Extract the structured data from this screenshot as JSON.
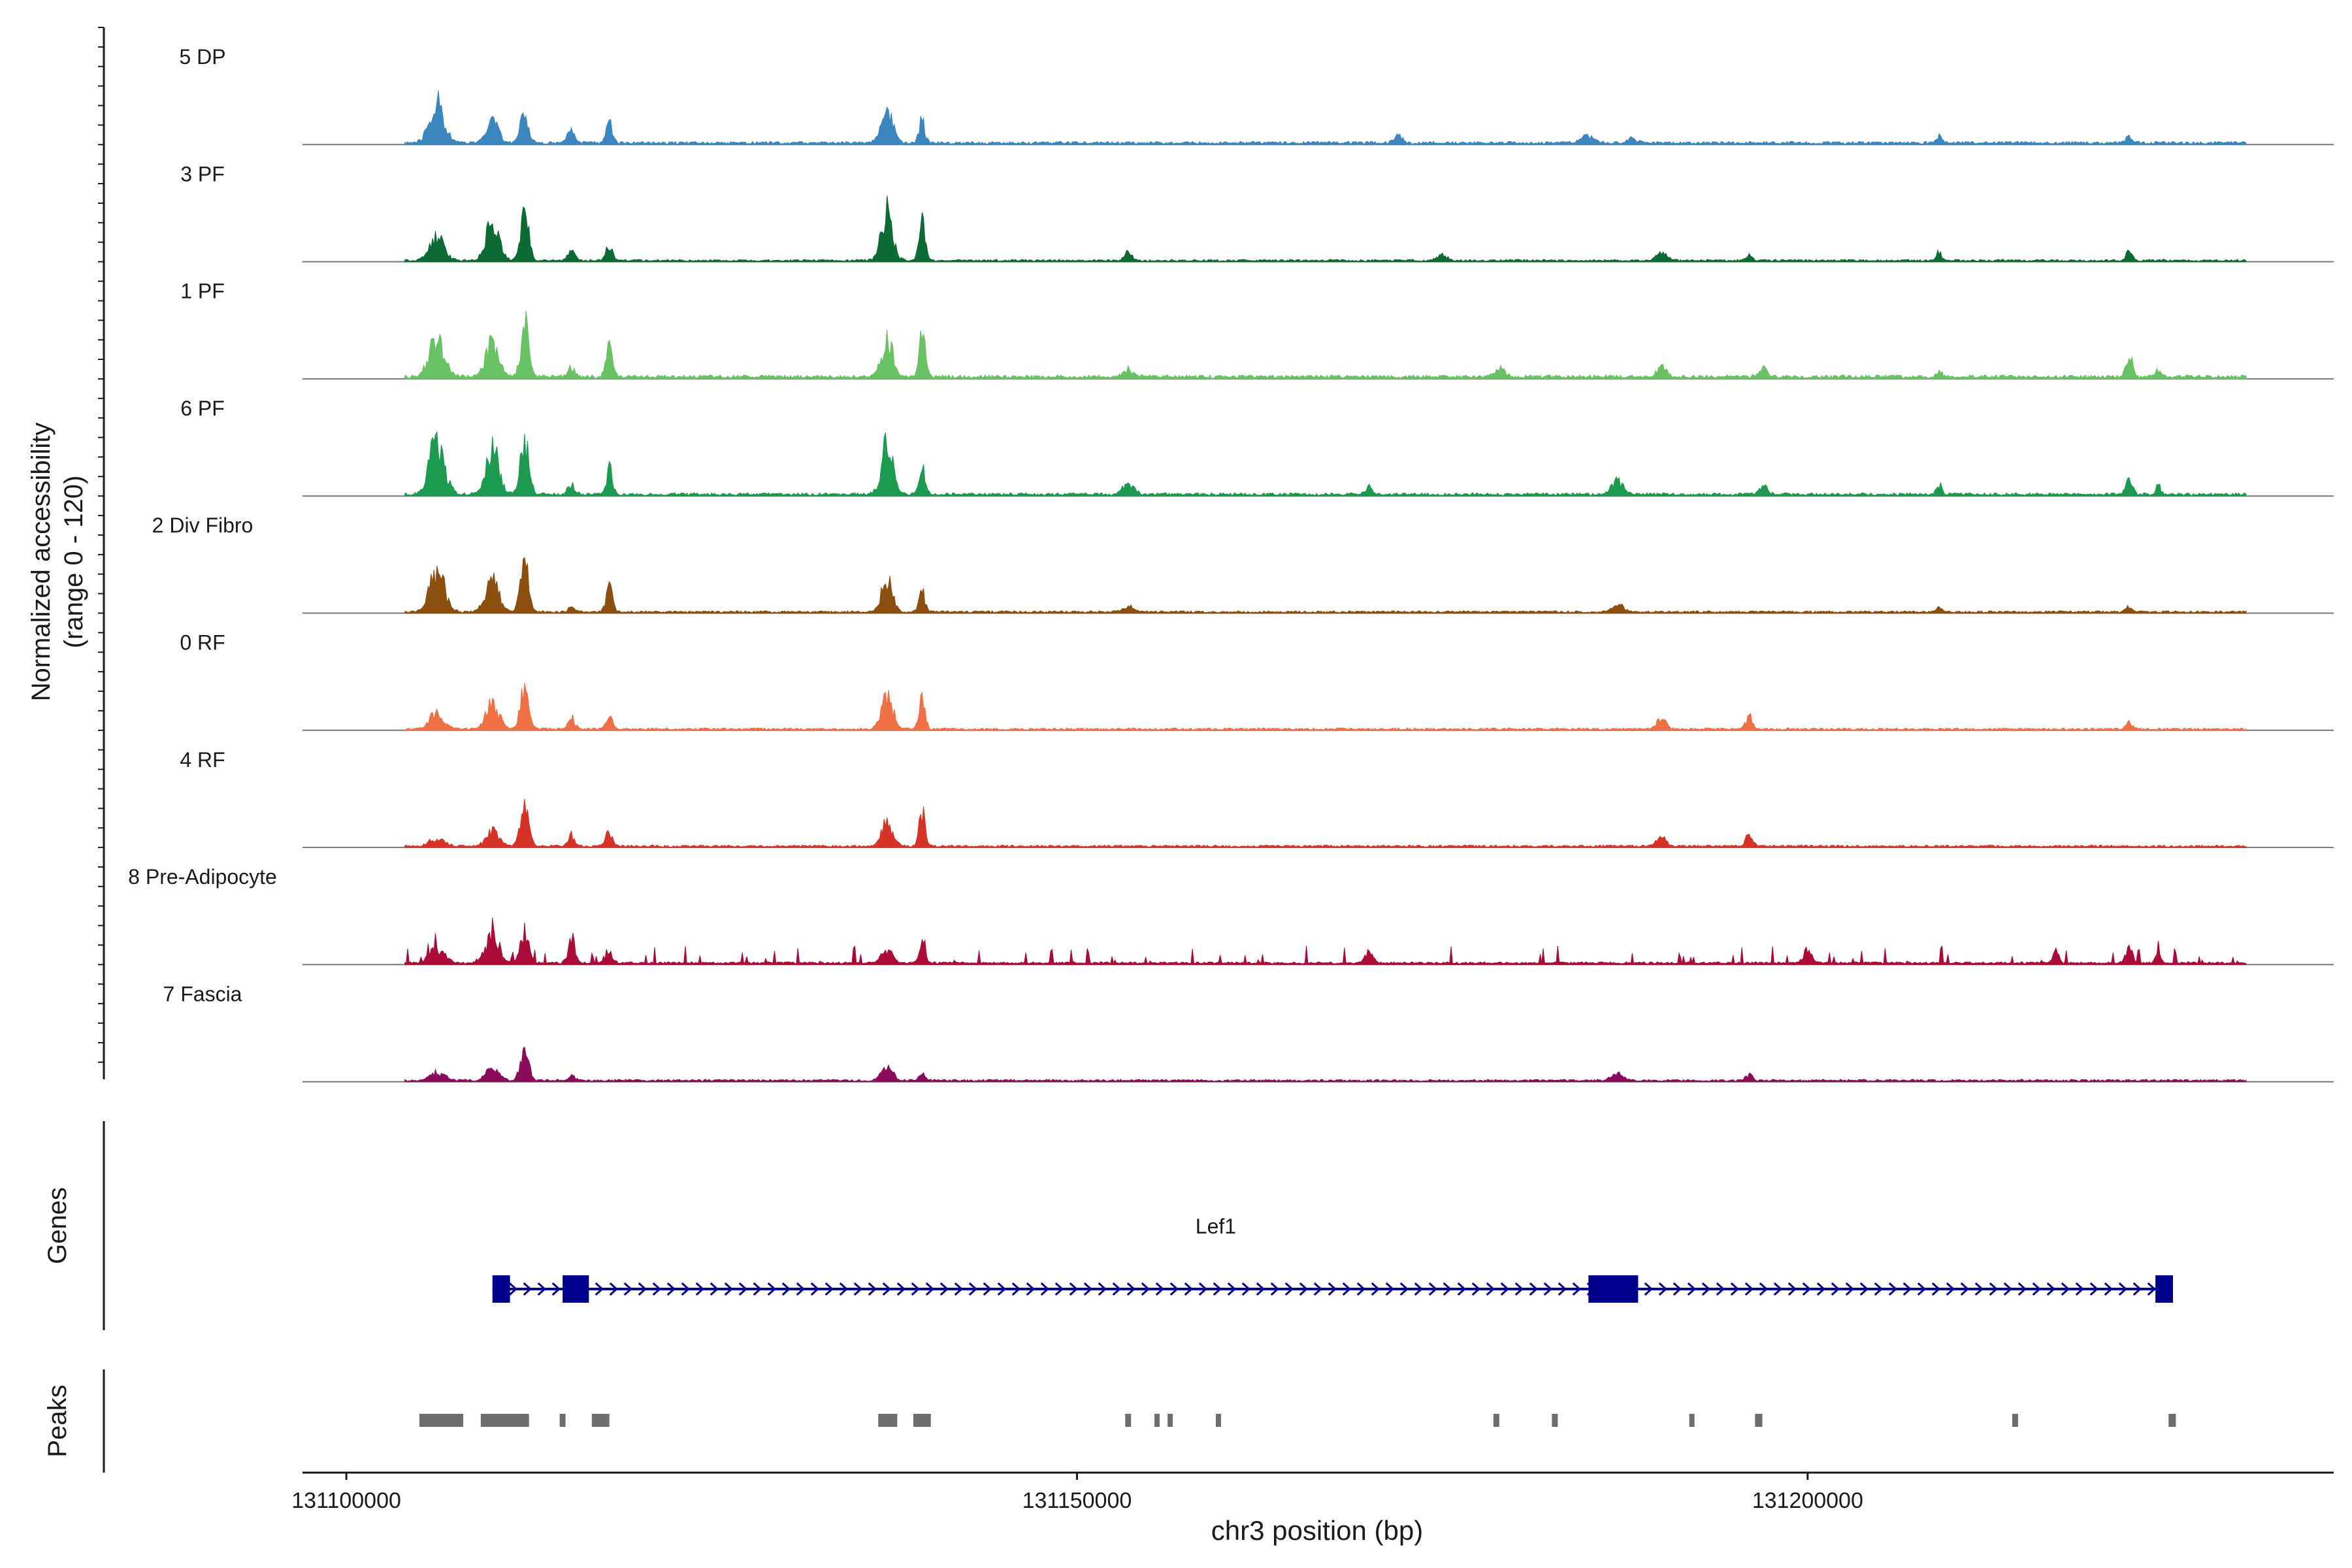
{
  "chart_data": {
    "type": "area",
    "title": "",
    "xlabel": "chr3 position (bp)",
    "ylabel": "Normalized accessibility\n(range 0 - 120)",
    "y_range": [
      0,
      120
    ],
    "x_range": [
      131097000,
      131236000
    ],
    "x_ticks": [
      131100000,
      131150000,
      131200000
    ],
    "x_tick_labels": [
      "131100000",
      "131150000",
      "131200000"
    ],
    "track_ranges": {
      "genes_label": "Genes",
      "peaks_label": "Peaks"
    },
    "series": [
      {
        "name": "5 DP",
        "color": "#3a87c0",
        "peaks": [
          [
            131106200,
            78,
            900
          ],
          [
            131110000,
            45,
            700
          ],
          [
            131112200,
            60,
            500
          ],
          [
            131115400,
            30,
            400
          ],
          [
            131118000,
            40,
            400
          ],
          [
            131137000,
            70,
            700
          ],
          [
            131139400,
            45,
            350
          ],
          [
            131172000,
            12,
            500
          ],
          [
            131185000,
            15,
            800
          ],
          [
            131188000,
            10,
            600
          ],
          [
            131209000,
            14,
            300
          ],
          [
            131222000,
            14,
            400
          ]
        ],
        "bg": 4
      },
      {
        "name": "3 PF",
        "color": "#0c6b34",
        "peaks": [
          [
            131106200,
            45,
            900
          ],
          [
            131110000,
            72,
            800
          ],
          [
            131112200,
            90,
            500
          ],
          [
            131115400,
            18,
            400
          ],
          [
            131118000,
            30,
            400
          ],
          [
            131137000,
            95,
            700
          ],
          [
            131139400,
            95,
            350
          ],
          [
            131153500,
            18,
            400
          ],
          [
            131175000,
            12,
            600
          ],
          [
            131190000,
            14,
            600
          ],
          [
            131196000,
            10,
            400
          ],
          [
            131209000,
            18,
            300
          ],
          [
            131222000,
            18,
            400
          ]
        ],
        "bg": 3
      },
      {
        "name": "1 PF",
        "color": "#68c162",
        "peaks": [
          [
            131106200,
            72,
            900
          ],
          [
            131110000,
            65,
            800
          ],
          [
            131112200,
            100,
            500
          ],
          [
            131115400,
            20,
            400
          ],
          [
            131118000,
            60,
            400
          ],
          [
            131137000,
            72,
            700
          ],
          [
            131139400,
            100,
            350
          ],
          [
            131153500,
            14,
            700
          ],
          [
            131179000,
            16,
            600
          ],
          [
            131190000,
            20,
            600
          ],
          [
            131197000,
            15,
            500
          ],
          [
            131209000,
            15,
            300
          ],
          [
            131222000,
            42,
            400
          ],
          [
            131224000,
            14,
            300
          ]
        ],
        "bg": 5
      },
      {
        "name": "6 PF",
        "color": "#1c9a4f",
        "peaks": [
          [
            131106200,
            105,
            900
          ],
          [
            131110000,
            85,
            800
          ],
          [
            131112200,
            110,
            500
          ],
          [
            131115400,
            20,
            400
          ],
          [
            131118000,
            50,
            400
          ],
          [
            131137000,
            100,
            700
          ],
          [
            131139400,
            65,
            350
          ],
          [
            131153500,
            22,
            700
          ],
          [
            131170000,
            15,
            400
          ],
          [
            131187000,
            25,
            700
          ],
          [
            131197000,
            15,
            500
          ],
          [
            131209000,
            20,
            300
          ],
          [
            131222000,
            28,
            400
          ],
          [
            131224000,
            18,
            300
          ]
        ],
        "bg": 4
      },
      {
        "name": "2 Div Fibro",
        "color": "#8a4f0f",
        "peaks": [
          [
            131106200,
            80,
            900
          ],
          [
            131110000,
            62,
            800
          ],
          [
            131112200,
            110,
            500
          ],
          [
            131115400,
            12,
            400
          ],
          [
            131118000,
            48,
            400
          ],
          [
            131137000,
            58,
            700
          ],
          [
            131139400,
            42,
            350
          ],
          [
            131153500,
            10,
            700
          ],
          [
            131187000,
            14,
            700
          ],
          [
            131209000,
            8,
            300
          ],
          [
            131222000,
            10,
            400
          ]
        ],
        "bg": 3
      },
      {
        "name": "0 RF",
        "color": "#ef7045",
        "peaks": [
          [
            131106200,
            30,
            900
          ],
          [
            131110000,
            50,
            800
          ],
          [
            131112200,
            75,
            500
          ],
          [
            131115400,
            25,
            400
          ],
          [
            131118000,
            25,
            400
          ],
          [
            131137000,
            65,
            700
          ],
          [
            131139400,
            62,
            350
          ],
          [
            131190000,
            18,
            600
          ],
          [
            131196000,
            26,
            400
          ],
          [
            131222000,
            15,
            400
          ]
        ],
        "bg": 3
      },
      {
        "name": "4 RF",
        "color": "#d63326",
        "peaks": [
          [
            131106200,
            15,
            900
          ],
          [
            131110000,
            30,
            800
          ],
          [
            131112200,
            90,
            500
          ],
          [
            131115400,
            20,
            400
          ],
          [
            131118000,
            30,
            400
          ],
          [
            131137000,
            48,
            700
          ],
          [
            131139400,
            70,
            350
          ],
          [
            131190000,
            18,
            600
          ],
          [
            131196000,
            28,
            400
          ]
        ],
        "bg": 3
      },
      {
        "name": "8 Pre-Adipocyte",
        "color": "#ab0b38",
        "spiky": true,
        "peaks": [
          [
            131106200,
            30,
            900
          ],
          [
            131110000,
            55,
            800
          ],
          [
            131112200,
            60,
            500
          ],
          [
            131115400,
            50,
            400
          ],
          [
            131118000,
            20,
            400
          ],
          [
            131137000,
            25,
            700
          ],
          [
            131139400,
            40,
            350
          ],
          [
            131170000,
            20,
            500
          ],
          [
            131200000,
            25,
            500
          ],
          [
            131217000,
            30,
            300
          ],
          [
            131222000,
            30,
            400
          ],
          [
            131224000,
            20,
            300
          ]
        ],
        "bg": 6
      },
      {
        "name": "7 Fascia",
        "color": "#8b0a5a",
        "peaks": [
          [
            131106200,
            15,
            900
          ],
          [
            131110000,
            25,
            800
          ],
          [
            131112200,
            60,
            500
          ],
          [
            131115400,
            10,
            400
          ],
          [
            131137000,
            25,
            700
          ],
          [
            131139400,
            12,
            350
          ],
          [
            131187000,
            12,
            700
          ],
          [
            131196000,
            12,
            400
          ]
        ],
        "bg": 3
      }
    ],
    "gene": {
      "name": "Lef1",
      "strand": "+",
      "start": 131110000,
      "end": 131225000,
      "exons": [
        [
          131110000,
          131111200
        ],
        [
          131114800,
          131116600
        ],
        [
          131185000,
          131188400
        ],
        [
          131223800,
          131225000
        ]
      ],
      "color": "#00008b"
    },
    "peak_regions": [
      [
        131105000,
        131108000
      ],
      [
        131109200,
        131112500
      ],
      [
        131114600,
        131115000
      ],
      [
        131116800,
        131118000
      ],
      [
        131136400,
        131137700
      ],
      [
        131138800,
        131140000
      ],
      [
        131153300,
        131153700
      ],
      [
        131155300,
        131155600
      ],
      [
        131156200,
        131156500
      ],
      [
        131159500,
        131159800
      ],
      [
        131178500,
        131178900
      ],
      [
        131182500,
        131182900
      ],
      [
        131191900,
        131192200
      ],
      [
        131196400,
        131196900
      ],
      [
        131214000,
        131214400
      ],
      [
        131224700,
        131225200
      ]
    ],
    "colors": {
      "gene_color": "#00008b",
      "peak_color": "#6e6e6e",
      "baseline_color": "#777777",
      "axis_color": "#1a1a1a"
    }
  }
}
